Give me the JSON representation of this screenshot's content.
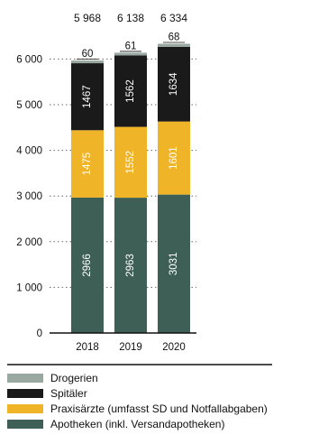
{
  "chart_data": {
    "type": "bar",
    "stacked": true,
    "categories": [
      "2018",
      "2019",
      "2020"
    ],
    "totals": [
      "5 968",
      "6 138",
      "6 334"
    ],
    "ylim": [
      0,
      6300
    ],
    "yticks": [
      0,
      1000,
      2000,
      3000,
      4000,
      5000,
      6000
    ],
    "ytick_labels": [
      "0",
      "1 000",
      "2 000",
      "3 000",
      "4 000",
      "5 000",
      "6 000"
    ],
    "grid": "dotted-horizontal",
    "legend_position": "bottom",
    "series": [
      {
        "name": "Apotheken (inkl. Versandapotheken)",
        "color": "#3d5f55",
        "label_color": "#ffffff",
        "values": [
          2966,
          2963,
          3031
        ]
      },
      {
        "name": "Praxisärzte (umfasst SD und Notfallabgaben)",
        "color": "#f0b429",
        "label_color": "#ffffff",
        "values": [
          1475,
          1552,
          1601
        ]
      },
      {
        "name": "Spitäler",
        "color": "#1a1a1a",
        "label_color": "#ffffff",
        "values": [
          1467,
          1562,
          1634
        ]
      },
      {
        "name": "Drogerien",
        "color": "#9aa8a2",
        "label_color": "#111111",
        "values": [
          60,
          61,
          68
        ]
      }
    ]
  }
}
